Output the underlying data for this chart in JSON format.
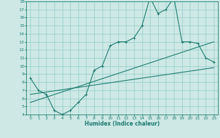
{
  "xlabel": "Humidex (Indice chaleur)",
  "ylabel": "",
  "line_color": "#1a7a6e",
  "bg_color": "#cde8e5",
  "grid_color": "#8eccc7",
  "xlim": [
    -0.5,
    23.5
  ],
  "ylim": [
    4,
    18
  ],
  "xticks": [
    0,
    1,
    2,
    3,
    4,
    5,
    6,
    7,
    8,
    9,
    10,
    11,
    12,
    13,
    14,
    15,
    16,
    17,
    18,
    19,
    20,
    21,
    22,
    23
  ],
  "yticks": [
    4,
    5,
    6,
    7,
    8,
    9,
    10,
    11,
    12,
    13,
    14,
    15,
    16,
    17,
    18
  ],
  "main_x": [
    0,
    1,
    2,
    3,
    4,
    5,
    6,
    7,
    8,
    9,
    10,
    11,
    12,
    13,
    14,
    15,
    16,
    17,
    18,
    19,
    20,
    21,
    22,
    23
  ],
  "main_y": [
    8.5,
    7.0,
    6.5,
    4.5,
    4.0,
    4.5,
    5.5,
    6.5,
    9.5,
    10.0,
    12.5,
    13.0,
    13.0,
    13.5,
    15.0,
    18.5,
    16.5,
    17.0,
    18.5,
    13.0,
    13.0,
    12.8,
    11.0,
    10.5
  ],
  "line1_x": [
    0,
    23
  ],
  "line1_y": [
    6.5,
    9.8
  ],
  "line2_x": [
    0,
    23
  ],
  "line2_y": [
    5.5,
    13.0
  ]
}
